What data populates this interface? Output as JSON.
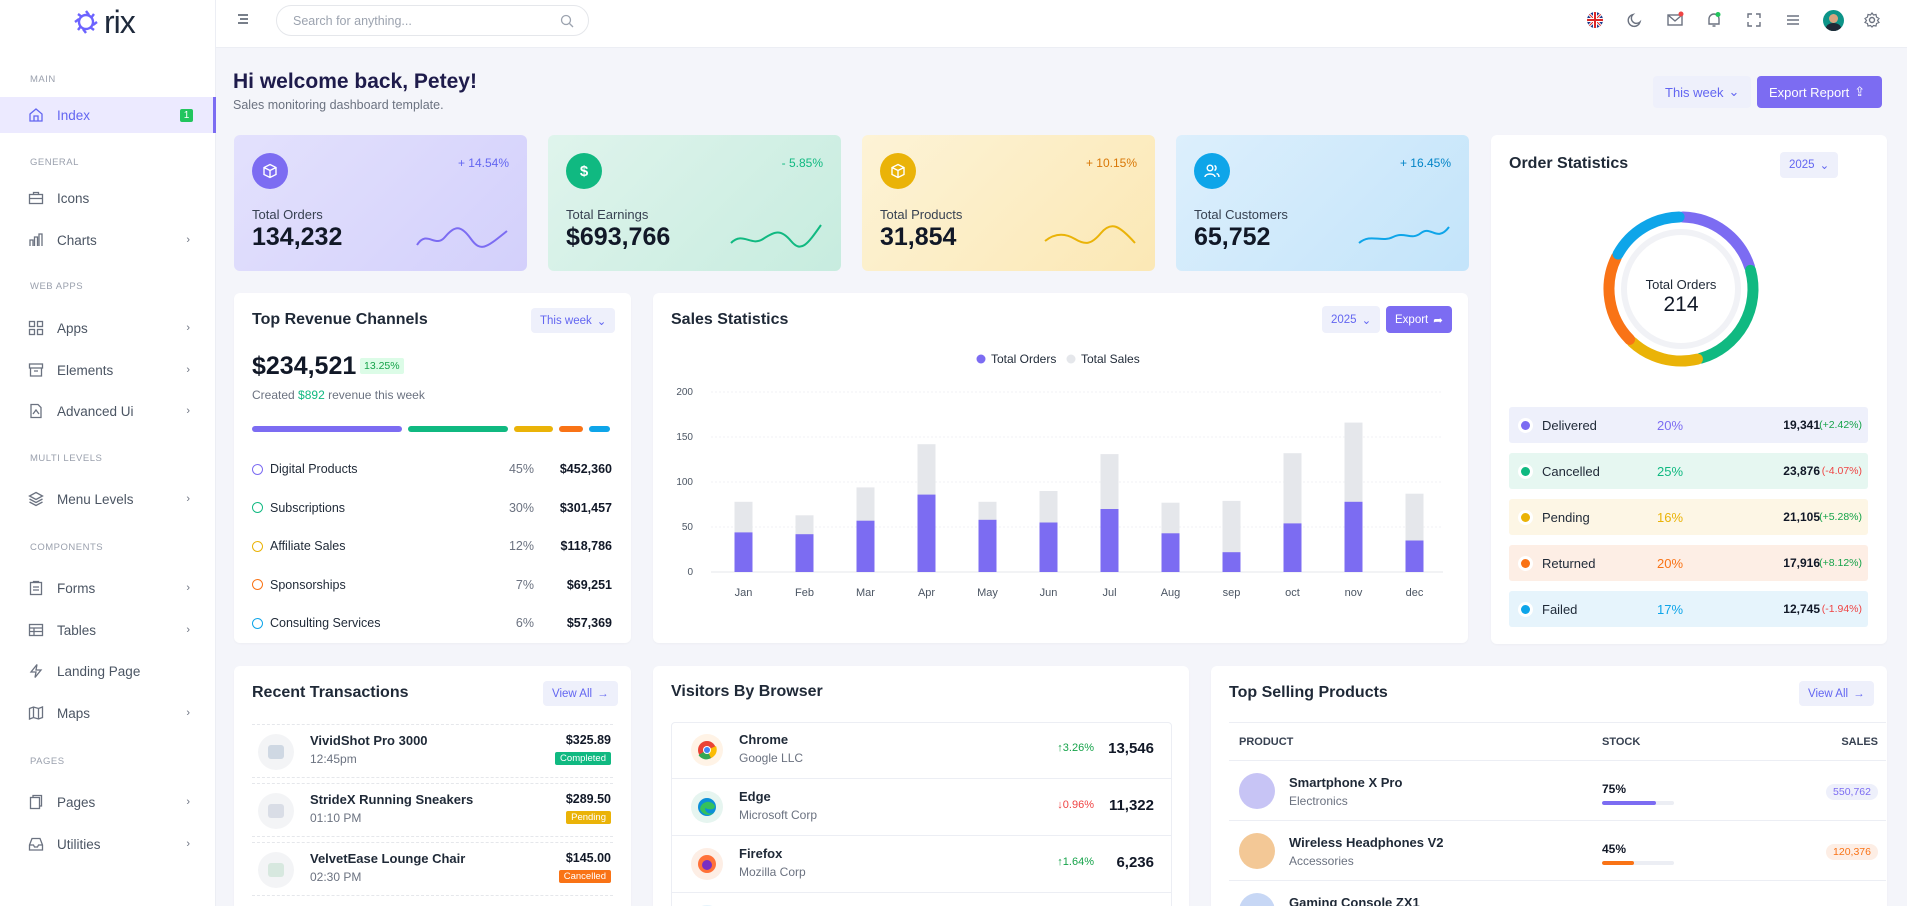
{
  "app": {
    "logo_text": "rix"
  },
  "sidebar": {
    "sections": {
      "main": "MAIN",
      "general": "GENERAL",
      "web_apps": "WEB APPS",
      "multi_levels": "MULTI LEVELS",
      "components": "COMPONENTS",
      "pages": "PAGES"
    },
    "items": [
      {
        "label": "Index",
        "badge": "1"
      },
      {
        "label": "Icons"
      },
      {
        "label": "Charts"
      },
      {
        "label": "Apps"
      },
      {
        "label": "Elements"
      },
      {
        "label": "Advanced Ui"
      },
      {
        "label": "Menu Levels"
      },
      {
        "label": "Forms"
      },
      {
        "label": "Tables"
      },
      {
        "label": "Landing Page"
      },
      {
        "label": "Maps"
      },
      {
        "label": "Pages"
      },
      {
        "label": "Utilities"
      }
    ]
  },
  "topbar": {
    "search_placeholder": "Search for anything...",
    "icons": [
      "menu-icon",
      "search-icon",
      "uk-flag-icon",
      "moon-icon",
      "mail-icon",
      "bell-icon",
      "fullscreen-icon",
      "list-icon",
      "avatar",
      "gear-icon"
    ]
  },
  "header": {
    "title": "Hi welcome back, Petey!",
    "subtitle": "Sales monitoring dashboard template.",
    "period": "This week",
    "export": "Export Report"
  },
  "stats": [
    {
      "label": "Total Orders",
      "value": "134,232",
      "change": "+ 14.54%",
      "color": "#6c63ff"
    },
    {
      "label": "Total Earnings",
      "value": "$693,766",
      "change": "- 5.85%",
      "color": "#10b981"
    },
    {
      "label": "Total Products",
      "value": "31,854",
      "change": "+ 10.15%",
      "color": "#eab308"
    },
    {
      "label": "Total Customers",
      "value": "65,752",
      "change": "+ 16.45%",
      "color": "#0ea5e9"
    }
  ],
  "revenue": {
    "title": "Top Revenue Channels",
    "period": "This week",
    "total": "$234,521",
    "badge": "13.25%",
    "created_prefix": "Created",
    "created_amount": "$892",
    "created_suffix": "revenue this week",
    "channels": [
      {
        "name": "Digital Products",
        "pct": "45%",
        "amount": "$452,360",
        "color": "#7c6cf2"
      },
      {
        "name": "Subscriptions",
        "pct": "30%",
        "amount": "$301,457",
        "color": "#10b981"
      },
      {
        "name": "Affiliate Sales",
        "pct": "12%",
        "amount": "$118,786",
        "color": "#eab308"
      },
      {
        "name": "Sponsorships",
        "pct": "7%",
        "amount": "$69,251",
        "color": "#f97316"
      },
      {
        "name": "Consulting Services",
        "pct": "6%",
        "amount": "$57,369",
        "color": "#0ea5e9"
      }
    ]
  },
  "sales": {
    "title": "Sales Statistics",
    "year": "2025",
    "export": "Export",
    "chart_data": {
      "type": "bar",
      "categories": [
        "Jan",
        "Feb",
        "Mar",
        "Apr",
        "May",
        "Jun",
        "Jul",
        "Aug",
        "sep",
        "oct",
        "nov",
        "dec"
      ],
      "series": [
        {
          "name": "Total Orders",
          "values": [
            44,
            42,
            57,
            86,
            58,
            55,
            70,
            43,
            22,
            54,
            78,
            35
          ],
          "color": "#7c6cf2"
        },
        {
          "name": "Total Sales",
          "values": [
            78,
            63,
            94,
            142,
            78,
            90,
            131,
            77,
            79,
            132,
            166,
            87
          ],
          "color": "#e5e7eb"
        }
      ],
      "yticks": [
        "0",
        "50",
        "100",
        "150",
        "200"
      ],
      "ylim": [
        0,
        200
      ],
      "legend": "top-center"
    }
  },
  "orders": {
    "title": "Order Statistics",
    "year": "2025",
    "center_label": "Total Orders",
    "center_value": "214",
    "chart_data": {
      "type": "pie",
      "labels": [
        "Delivered",
        "Cancelled",
        "Pending",
        "Returned",
        "Failed"
      ],
      "values": [
        20,
        25,
        16,
        20,
        17
      ]
    },
    "rows": [
      {
        "label": "Delivered",
        "pct": "20%",
        "count": "19,341",
        "change": "(+2.42%)",
        "color": "#7c6cf2",
        "bg": "#eef0fb",
        "pc_color": "#7c6cf2",
        "ch_color": "#16a34a"
      },
      {
        "label": "Cancelled",
        "pct": "25%",
        "count": "23,876",
        "change": "(-4.07%)",
        "color": "#10b981",
        "bg": "#e6f7f1",
        "pc_color": "#10b981",
        "ch_color": "#ef4444"
      },
      {
        "label": "Pending",
        "pct": "16%",
        "count": "21,105",
        "change": "(+5.28%)",
        "color": "#eab308",
        "bg": "#fdf6e5",
        "pc_color": "#eab308",
        "ch_color": "#16a34a"
      },
      {
        "label": "Returned",
        "pct": "20%",
        "count": "17,916",
        "change": "(+8.12%)",
        "color": "#f97316",
        "bg": "#fdeee5",
        "pc_color": "#f97316",
        "ch_color": "#16a34a"
      },
      {
        "label": "Failed",
        "pct": "17%",
        "count": "12,745",
        "change": "(-1.94%)",
        "color": "#0ea5e9",
        "bg": "#e6f4fc",
        "pc_color": "#0ea5e9",
        "ch_color": "#ef4444"
      }
    ]
  },
  "transactions": {
    "title": "Recent Transactions",
    "view_all": "View All",
    "rows": [
      {
        "name": "VividShot Pro 3000",
        "time": "12:45pm",
        "price": "$325.89",
        "status": "Completed",
        "status_color": "#10b981"
      },
      {
        "name": "StrideX Running Sneakers",
        "time": "01:10 PM",
        "price": "$289.50",
        "status": "Pending",
        "status_color": "#eab308"
      },
      {
        "name": "VelvetEase Lounge Chair",
        "time": "02:30 PM",
        "price": "$145.00",
        "status": "Cancelled",
        "status_color": "#f97316"
      }
    ]
  },
  "browsers": {
    "title": "Visitors By Browser",
    "rows": [
      {
        "name": "Chrome",
        "company": "Google LLC",
        "change": "3.26%",
        "dir": "up",
        "count": "13,546"
      },
      {
        "name": "Edge",
        "company": "Microsoft Corp",
        "change": "0.96%",
        "dir": "down",
        "count": "11,322"
      },
      {
        "name": "Firefox",
        "company": "Mozilla Corp",
        "change": "1.64%",
        "dir": "up",
        "count": "6,236"
      }
    ]
  },
  "top_products": {
    "title": "Top Selling Products",
    "view_all": "View All",
    "headers": {
      "product": "PRODUCT",
      "stock": "STOCK",
      "sales": "SALES"
    },
    "rows": [
      {
        "name": "Smartphone X Pro",
        "category": "Electronics",
        "stock": "75%",
        "stock_val": 0.75,
        "sales": "550,762",
        "color": "#7c6cf2",
        "bg": "#eef0fb",
        "img": "#c7c4f5"
      },
      {
        "name": "Wireless Headphones V2",
        "category": "Accessories",
        "stock": "45%",
        "stock_val": 0.45,
        "sales": "120,376",
        "color": "#f97316",
        "bg": "#fdeee5",
        "img": "#f3c896"
      },
      {
        "name": "Gaming Console ZX1",
        "category": "",
        "stock": "",
        "stock_val": 0,
        "sales": "",
        "color": "#7c6cf2",
        "bg": "#eef0fb",
        "img": "#c7d7f5"
      }
    ]
  }
}
